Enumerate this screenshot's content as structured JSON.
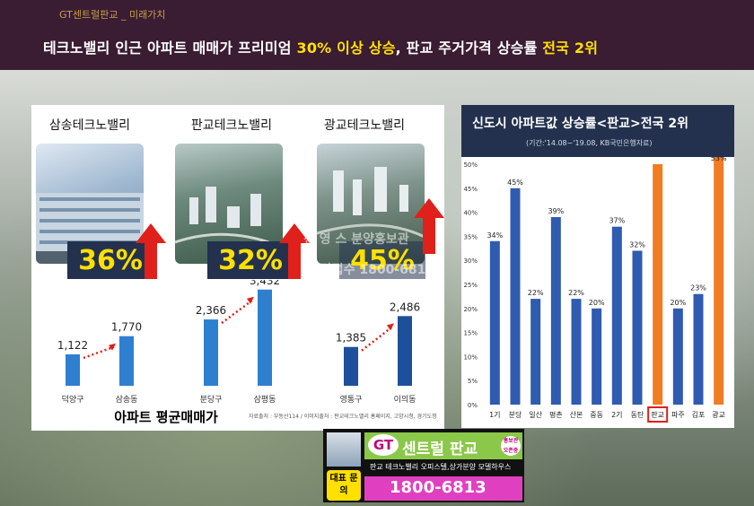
{
  "header": {
    "brand": "GT센트럴판교 _ 미래가치",
    "headline_part1": "테크노밸리 인근 아파트 매매가 프리미엄 ",
    "headline_hl1": "30% 이상 상승",
    "headline_part2": ", 판교 주거가격 상승률 ",
    "headline_hl2": "전국 2위"
  },
  "left_panel": {
    "cities": [
      {
        "name": "삼송테크노밸리",
        "pct": "36%",
        "from_label": "덕양구",
        "to_label": "삼송동",
        "from_value": "1,122",
        "to_value": "1,770",
        "from_num": 1122,
        "to_num": 1770
      },
      {
        "name": "판교테크노밸리",
        "pct": "32%",
        "from_label": "분당구",
        "to_label": "삼평동",
        "from_value": "2,366",
        "to_value": "3,432",
        "from_num": 2366,
        "to_num": 3432
      },
      {
        "name": "광교테크노밸리",
        "pct": "45%",
        "from_label": "영통구",
        "to_label": "이의동",
        "from_value": "1,385",
        "to_value": "2,486",
        "from_num": 1385,
        "to_num": 2486
      }
    ],
    "caption": "아파트 평균매매가",
    "source_note": "자료출처 : 부동산114 / 이미지출처 : 판교테크노밸리 홈페이지, 고양시청, 경기도청"
  },
  "chart_data": {
    "type": "bar",
    "title": "신도시 아파트값 상승률<판교>전국 2위",
    "subtitle": "(기간:'14.08~'19.08, KB국민은행자료)",
    "categories": [
      "1기",
      "분당",
      "일산",
      "평촌",
      "산본",
      "중동",
      "2기",
      "동탄",
      "판교",
      "파주",
      "김포",
      "광교"
    ],
    "values": [
      34,
      45,
      22,
      39,
      22,
      20,
      37,
      32,
      50,
      20,
      23,
      53
    ],
    "value_labels": [
      "34%",
      "45%",
      "22%",
      "39%",
      "22%",
      "20%",
      "37%",
      "32%",
      "",
      "20%",
      "23%",
      "53%"
    ],
    "yticks": [
      "50%",
      "45%",
      "40%",
      "35%",
      "30%",
      "25%",
      "20%",
      "15%",
      "10%",
      "5%",
      "0%"
    ],
    "ylim": [
      0,
      50
    ],
    "highlighted": [
      "판교",
      "광교"
    ],
    "colors": {
      "base": "#2f5bb0",
      "highlight": "#f07c24",
      "box": "#e0201a"
    }
  },
  "promo": {
    "logo": "GT",
    "name": "센트럴 판교",
    "badge": "홍보관 오픈중",
    "desc": "판교 테크노밸리 오피스텔,상가분양 모델하우스",
    "inquiry": "대표 문의",
    "phone": "1800-6813"
  },
  "watermark": {
    "line1": "신 영 스 분양홍보관",
    "line2": "상담접수 1800-6813"
  }
}
